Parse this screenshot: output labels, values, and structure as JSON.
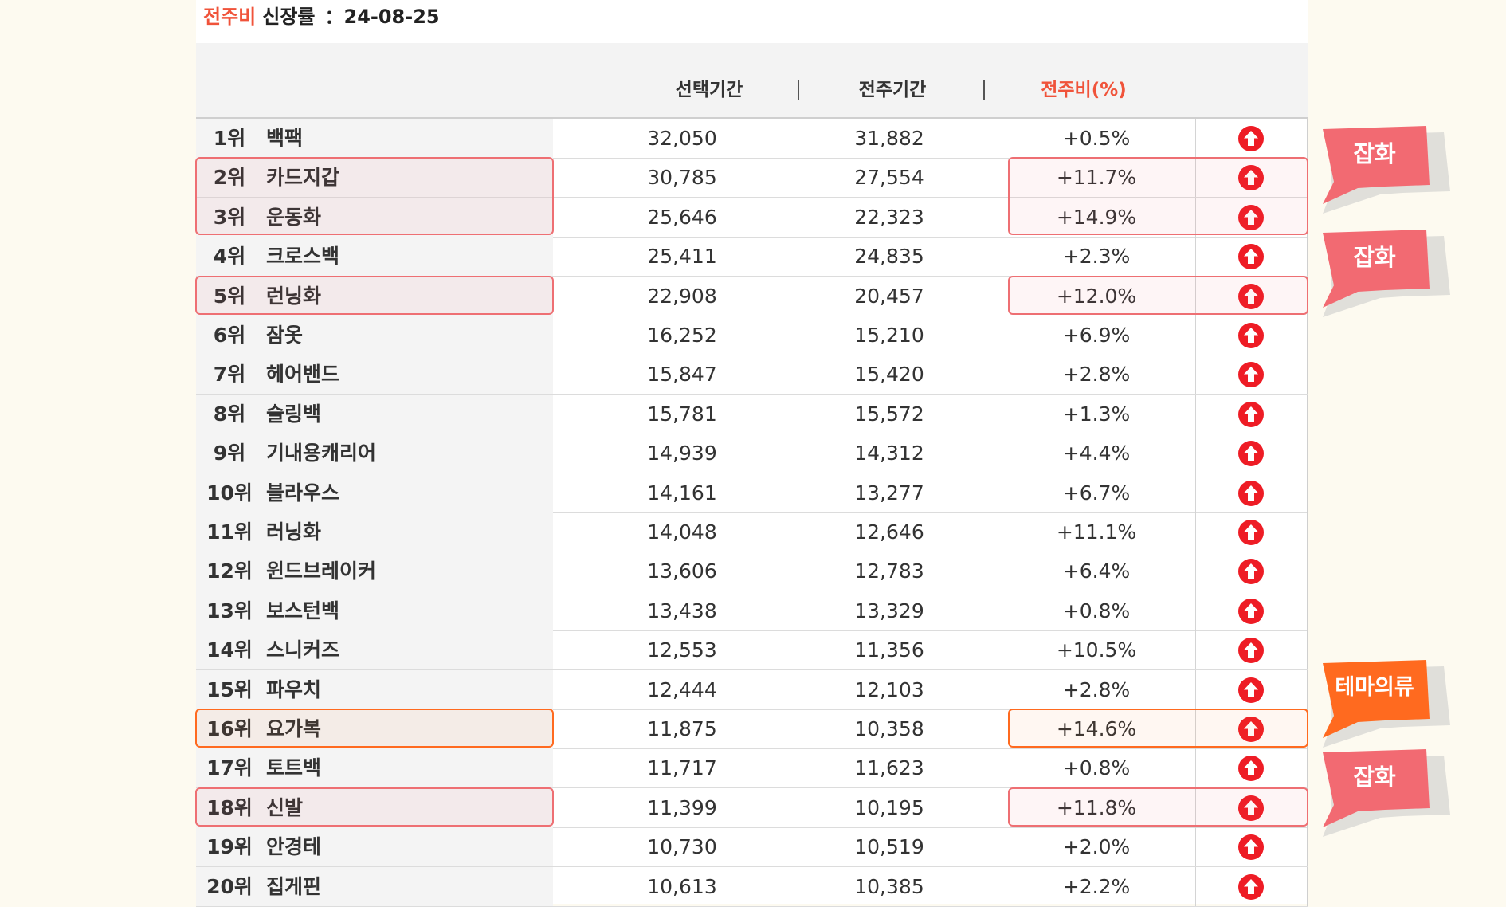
{
  "title": {
    "accent": "전주비",
    "label": "신장률",
    "date": "：24-08-25"
  },
  "columns": {
    "selected": "선택기간",
    "sep1": "|",
    "previous": "전주기간",
    "sep2": "|",
    "change": "전주비(%)"
  },
  "colors": {
    "accent": "#f0533a",
    "up_icon": "#ee1c25",
    "callout_pink": "#f26a72",
    "callout_orange": "#ff6a1f"
  },
  "icons": {
    "trend": "arrow-up-circle-icon"
  },
  "rows": [
    {
      "rank": "1위",
      "keyword": "백팩",
      "current": "32,050",
      "previous": "31,882",
      "change": "+0.5%"
    },
    {
      "rank": "2위",
      "keyword": "카드지갑",
      "current": "30,785",
      "previous": "27,554",
      "change": "+11.7%"
    },
    {
      "rank": "3위",
      "keyword": "운동화",
      "current": "25,646",
      "previous": "22,323",
      "change": "+14.9%"
    },
    {
      "rank": "4위",
      "keyword": "크로스백",
      "current": "25,411",
      "previous": "24,835",
      "change": "+2.3%"
    },
    {
      "rank": "5위",
      "keyword": "런닝화",
      "current": "22,908",
      "previous": "20,457",
      "change": "+12.0%"
    },
    {
      "rank": "6위",
      "keyword": "잠옷",
      "current": "16,252",
      "previous": "15,210",
      "change": "+6.9%"
    },
    {
      "rank": "7위",
      "keyword": "헤어밴드",
      "current": "15,847",
      "previous": "15,420",
      "change": "+2.8%"
    },
    {
      "rank": "8위",
      "keyword": "슬링백",
      "current": "15,781",
      "previous": "15,572",
      "change": "+1.3%"
    },
    {
      "rank": "9위",
      "keyword": "기내용캐리어",
      "current": "14,939",
      "previous": "14,312",
      "change": "+4.4%"
    },
    {
      "rank": "10위",
      "keyword": "블라우스",
      "current": "14,161",
      "previous": "13,277",
      "change": "+6.7%"
    },
    {
      "rank": "11위",
      "keyword": "러닝화",
      "current": "14,048",
      "previous": "12,646",
      "change": "+11.1%"
    },
    {
      "rank": "12위",
      "keyword": "윈드브레이커",
      "current": "13,606",
      "previous": "12,783",
      "change": "+6.4%"
    },
    {
      "rank": "13위",
      "keyword": "보스턴백",
      "current": "13,438",
      "previous": "13,329",
      "change": "+0.8%"
    },
    {
      "rank": "14위",
      "keyword": "스니커즈",
      "current": "12,553",
      "previous": "11,356",
      "change": "+10.5%"
    },
    {
      "rank": "15위",
      "keyword": "파우치",
      "current": "12,444",
      "previous": "12,103",
      "change": "+2.8%"
    },
    {
      "rank": "16위",
      "keyword": "요가복",
      "current": "11,875",
      "previous": "10,358",
      "change": "+14.6%"
    },
    {
      "rank": "17위",
      "keyword": "토트백",
      "current": "11,717",
      "previous": "11,623",
      "change": "+0.8%"
    },
    {
      "rank": "18위",
      "keyword": "신발",
      "current": "11,399",
      "previous": "10,195",
      "change": "+11.8%"
    },
    {
      "rank": "19위",
      "keyword": "안경테",
      "current": "10,730",
      "previous": "10,519",
      "change": "+2.0%"
    },
    {
      "rank": "20위",
      "keyword": "집게핀",
      "current": "10,613",
      "previous": "10,385",
      "change": "+2.2%"
    }
  ],
  "callouts": [
    {
      "label": "잡화",
      "color": "#f26a72"
    },
    {
      "label": "잡화",
      "color": "#f26a72"
    },
    {
      "label": "테마의류",
      "color": "#ff6a1f"
    },
    {
      "label": "잡화",
      "color": "#f26a72"
    }
  ]
}
